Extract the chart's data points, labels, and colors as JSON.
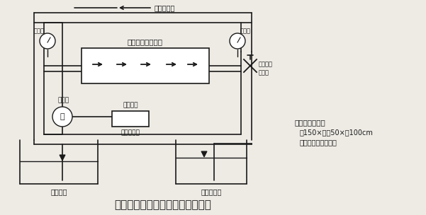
{
  "title": "図１　試作した膜濾過装置の構造",
  "title_fontsize": 11,
  "bg_color": "#eeebe5",
  "line_color": "#1a1a1a",
  "label_top_arrow": "濃縮液帰路",
  "label_ro": "ＲＯ膜モジュール",
  "label_pressure1": "圧力計",
  "label_pressure2": "圧力計",
  "label_pressure_control": "圧力制御",
  "label_valve": "バルブ",
  "label_pump": "ポンプ",
  "label_flow": "流量制御",
  "label_inverter": "インバータ",
  "label_tank1": "原液水槽",
  "label_tank2": "透過液水槽",
  "label_size_title": "装置の大きさ：",
  "label_size_dim": "幅150×奥行50×高100cm",
  "label_size_note": "（水槽部分を除く）",
  "text_color": "#111111"
}
